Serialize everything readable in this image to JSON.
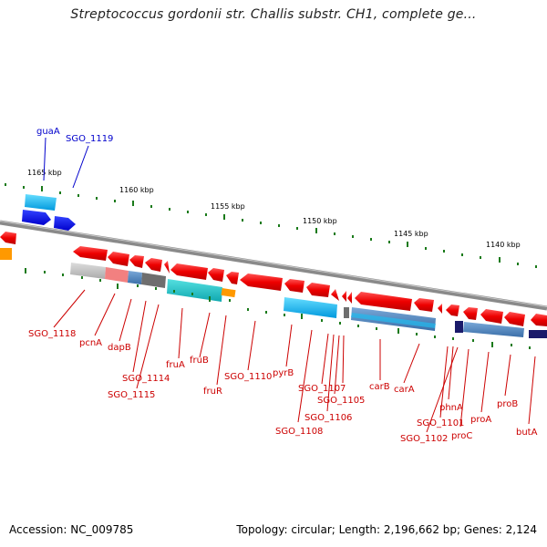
{
  "title": "Streptococcus gordonii str. Challis substr. CH1, complete ge...",
  "accession": "Accession: NC_009785",
  "stats": "Topology: circular; Length: 2,196,662 bp; Genes: 2,124",
  "scale_labels": [
    "1165 kbp",
    "1160 kbp",
    "1155 kbp",
    "1150 kbp",
    "1145 kbp",
    "1140 kbp"
  ],
  "labels_top": [
    "guaA",
    "SGO_1119"
  ],
  "labels_bottom": [
    "SGO_1118",
    "pcnA",
    "dapB",
    "SGO_1114",
    "SGO_1115",
    "fruA",
    "fruB",
    "fruR",
    "SGO_1110",
    "pyrB",
    "SGO_1107",
    "SGO_1108",
    "SGO_1105",
    "SGO_1106",
    "carB",
    "carA",
    "phnA",
    "SGO_1101",
    "SGO_1102",
    "proC",
    "proA",
    "proB",
    "butA"
  ],
  "colors": {
    "gene_forward_strand": "#0000ee",
    "gene_reverse_strand": "#ee0000",
    "backbone": "#888888",
    "scale_ticks": "#1a7a1a",
    "label_top": "#0000cc",
    "label_bottom": "#cc0000"
  }
}
